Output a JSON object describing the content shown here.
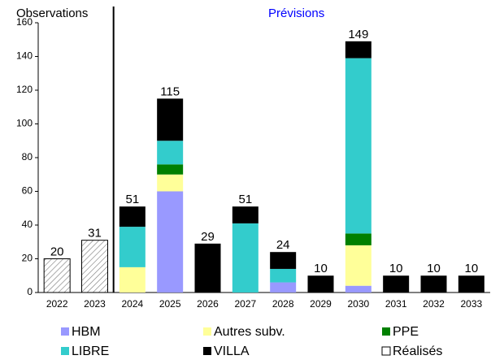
{
  "chart_data": {
    "type": "stacked_bar",
    "observations_label": "Observations",
    "forecast_label": "Prévisions",
    "categories": [
      "2022",
      "2023",
      "2024",
      "2025",
      "2026",
      "2027",
      "2028",
      "2029",
      "2030",
      "2031",
      "2032",
      "2033"
    ],
    "series": [
      {
        "name": "HBM",
        "color": "#9999ff",
        "values": [
          null,
          null,
          null,
          60,
          null,
          null,
          6,
          null,
          4,
          null,
          null,
          null
        ]
      },
      {
        "name": "Autres subv.",
        "color": "#ffff99",
        "values": [
          null,
          null,
          15,
          10,
          null,
          null,
          null,
          null,
          24,
          null,
          null,
          null
        ]
      },
      {
        "name": "PPE",
        "color": "#008000",
        "values": [
          null,
          null,
          null,
          6,
          null,
          null,
          null,
          null,
          7,
          null,
          null,
          null
        ]
      },
      {
        "name": "LIBRE",
        "color": "#33cccc",
        "values": [
          null,
          null,
          24,
          14,
          null,
          41,
          8,
          null,
          104,
          null,
          null,
          null
        ]
      },
      {
        "name": "VILLA",
        "color": "#000000",
        "values": [
          null,
          null,
          12,
          25,
          29,
          10,
          10,
          10,
          10,
          10,
          10,
          10
        ]
      },
      {
        "name": "Réalisés",
        "color": "#ffffff",
        "hatch": true,
        "values": [
          20,
          31,
          null,
          null,
          null,
          null,
          null,
          null,
          null,
          null,
          null,
          null
        ]
      }
    ],
    "totals": [
      20,
      31,
      51,
      115,
      29,
      51,
      24,
      10,
      149,
      10,
      10,
      10
    ],
    "ylim": [
      0,
      160
    ],
    "yticks": [
      0,
      20,
      40,
      60,
      80,
      100,
      120,
      140,
      160
    ],
    "grid": false
  }
}
